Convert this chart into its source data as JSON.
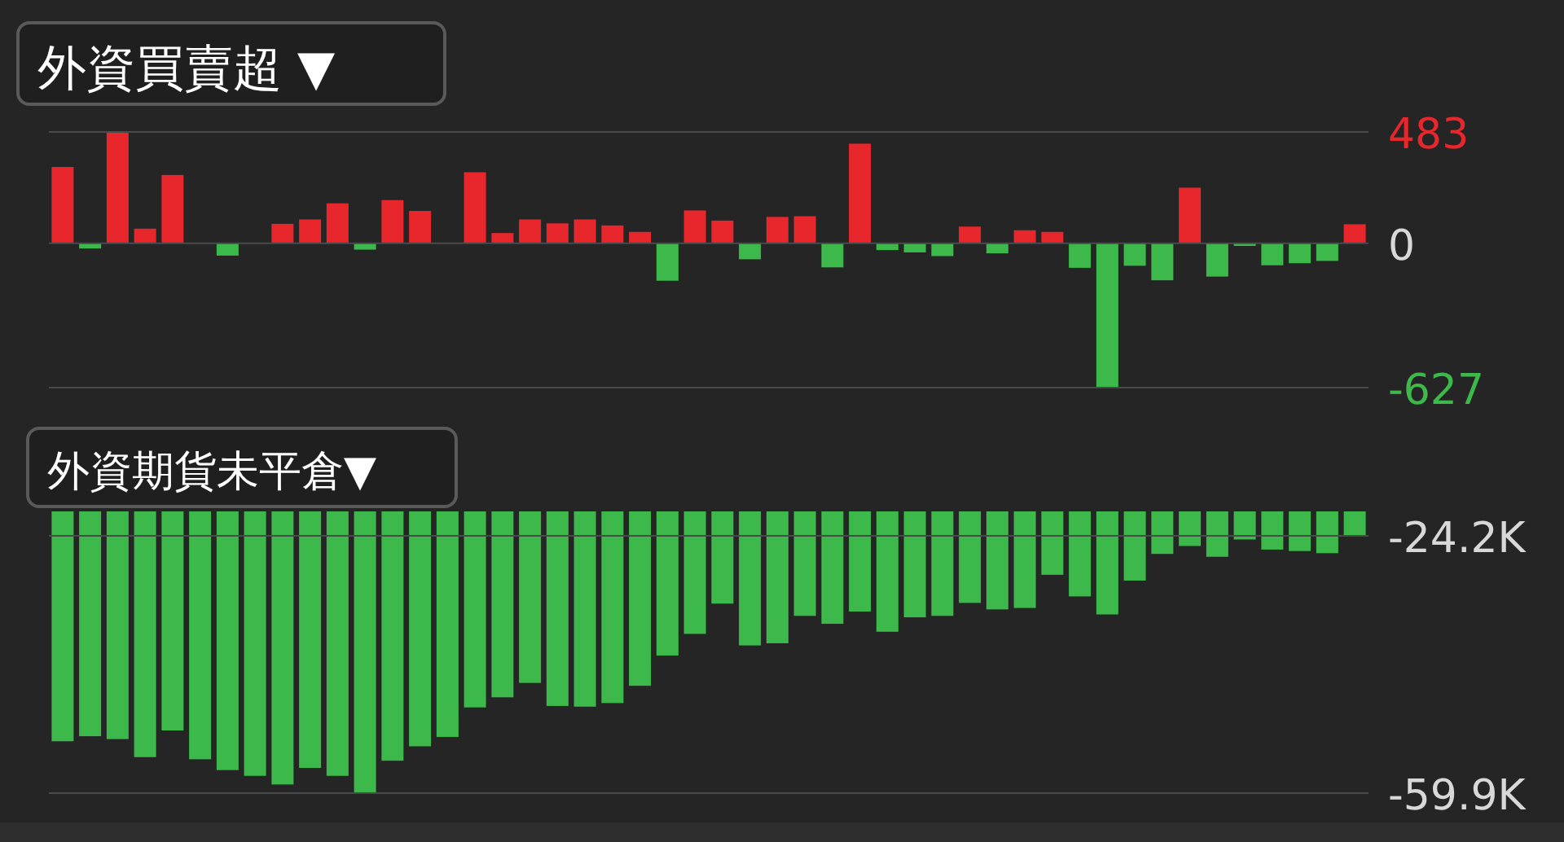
{
  "chart_data": [
    {
      "type": "bar",
      "title": "外資買賣超 ▼",
      "categories": [
        null,
        null,
        null,
        null,
        null,
        null,
        null,
        null,
        null,
        null,
        null,
        null,
        null,
        null,
        null,
        null,
        null,
        null,
        null,
        null,
        null,
        null,
        null,
        null,
        null,
        null,
        null,
        null,
        null,
        null,
        null,
        null,
        null,
        null,
        null,
        null,
        null,
        null,
        null,
        null,
        null,
        null,
        null,
        null,
        null,
        null,
        null,
        null
      ],
      "values": [
        331,
        -23,
        483,
        63,
        296,
        0,
        -54,
        0,
        84,
        103,
        173,
        -28,
        187,
        140,
        0,
        308,
        44,
        103,
        86,
        103,
        77,
        49,
        -163,
        142,
        98,
        -70,
        114,
        117,
        -105,
        432,
        -30,
        -40,
        -56,
        72,
        -44,
        56,
        49,
        -107,
        -627,
        -98,
        -161,
        241,
        -145,
        -12,
        -96,
        -87,
        -77,
        82
      ],
      "colors": [
        "#e8272c",
        "#3cb94a",
        "#e8272c",
        "#e8272c",
        "#e8272c",
        "#e8272c",
        "#3cb94a",
        "#e8272c",
        "#e8272c",
        "#e8272c",
        "#e8272c",
        "#3cb94a",
        "#e8272c",
        "#e8272c",
        "#e8272c",
        "#e8272c",
        "#e8272c",
        "#e8272c",
        "#e8272c",
        "#e8272c",
        "#e8272c",
        "#e8272c",
        "#3cb94a",
        "#e8272c",
        "#e8272c",
        "#3cb94a",
        "#e8272c",
        "#e8272c",
        "#3cb94a",
        "#e8272c",
        "#3cb94a",
        "#3cb94a",
        "#3cb94a",
        "#e8272c",
        "#3cb94a",
        "#e8272c",
        "#e8272c",
        "#3cb94a",
        "#3cb94a",
        "#3cb94a",
        "#3cb94a",
        "#e8272c",
        "#3cb94a",
        "#3cb94a",
        "#3cb94a",
        "#3cb94a",
        "#3cb94a",
        "#e8272c"
      ],
      "ylim": [
        -627,
        483
      ],
      "yticks": [
        -627,
        0,
        483
      ],
      "grid": "y",
      "tick_labels": "y"
    },
    {
      "type": "bar",
      "title": "外資期貨未平倉▼",
      "categories": [
        null,
        null,
        null,
        null,
        null,
        null,
        null,
        null,
        null,
        null,
        null,
        null,
        null,
        null,
        null,
        null,
        null,
        null,
        null,
        null,
        null,
        null,
        null,
        null,
        null,
        null,
        null,
        null,
        null,
        null,
        null,
        null,
        null,
        null,
        null,
        null,
        null,
        null,
        null,
        null,
        null,
        null,
        null,
        null,
        null,
        null,
        null,
        null
      ],
      "values": [
        -52700,
        -52000,
        -52400,
        -54900,
        -51200,
        -55200,
        -56700,
        -57500,
        -58700,
        -56400,
        -57500,
        -59900,
        -55400,
        -53400,
        -52100,
        -48000,
        -46600,
        -44600,
        -47800,
        -47900,
        -47400,
        -45000,
        -40800,
        -37800,
        -33600,
        -39400,
        -39100,
        -35300,
        -36400,
        -34700,
        -37500,
        -35500,
        -35300,
        -33500,
        -34400,
        -34200,
        -29600,
        -32600,
        -35100,
        -30400,
        -26700,
        -25600,
        -27100,
        -24700,
        -26100,
        -26300,
        -26600,
        -24200
      ],
      "colors": [
        "#3cb94a",
        "#3cb94a",
        "#3cb94a",
        "#3cb94a",
        "#3cb94a",
        "#3cb94a",
        "#3cb94a",
        "#3cb94a",
        "#3cb94a",
        "#3cb94a",
        "#3cb94a",
        "#3cb94a",
        "#3cb94a",
        "#3cb94a",
        "#3cb94a",
        "#3cb94a",
        "#3cb94a",
        "#3cb94a",
        "#3cb94a",
        "#3cb94a",
        "#3cb94a",
        "#3cb94a",
        "#3cb94a",
        "#3cb94a",
        "#3cb94a",
        "#3cb94a",
        "#3cb94a",
        "#3cb94a",
        "#3cb94a",
        "#3cb94a",
        "#3cb94a",
        "#3cb94a",
        "#3cb94a",
        "#3cb94a",
        "#3cb94a",
        "#3cb94a",
        "#3cb94a",
        "#3cb94a",
        "#3cb94a",
        "#3cb94a",
        "#3cb94a",
        "#3cb94a",
        "#3cb94a",
        "#3cb94a",
        "#3cb94a",
        "#3cb94a",
        "#3cb94a",
        "#3cb94a"
      ],
      "ylim": [
        -59900,
        -20800
      ],
      "yticks": [
        {
          "value": -59900,
          "label": "-59.9K"
        },
        {
          "value": -24200,
          "label": "-24.2K"
        }
      ],
      "grid": "y",
      "tick_labels": "y"
    }
  ]
}
